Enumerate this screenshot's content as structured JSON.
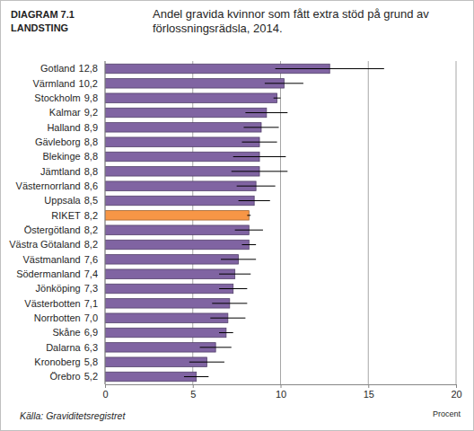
{
  "chart_data": {
    "type": "bar",
    "orientation": "horizontal",
    "title": "Andel gravida kvinnor som fått extra stöd på grund av förlossningsrädsla, 2014.",
    "annotations": [
      "DIAGRAM 7.1",
      "LANDSTING",
      "Källa: Graviditetsregistret"
    ],
    "xlabel": "Procent",
    "categories": [
      "Gotland",
      "Värmland",
      "Stockholm",
      "Kalmar",
      "Halland",
      "Gävleborg",
      "Blekinge",
      "Jämtland",
      "Västernorrland",
      "Uppsala",
      "RIKET",
      "Östergötland",
      "Västra Götaland",
      "Västmanland",
      "Södermanland",
      "Jönköping",
      "Västerbotten",
      "Norrbotten",
      "Skåne",
      "Dalarna",
      "Kronoberg",
      "Örebro"
    ],
    "values": [
      12.8,
      10.2,
      9.8,
      9.2,
      8.9,
      8.8,
      8.8,
      8.8,
      8.6,
      8.5,
      8.2,
      8.2,
      8.2,
      7.6,
      7.4,
      7.3,
      7.1,
      7.0,
      6.9,
      6.3,
      5.8,
      5.2
    ],
    "value_labels": [
      "12,8",
      "10,2",
      "9,8",
      "9,2",
      "8,9",
      "8,8",
      "8,8",
      "8,8",
      "8,6",
      "8,5",
      "8,2",
      "8,2",
      "8,2",
      "7,6",
      "7,4",
      "7,3",
      "7,1",
      "7,0",
      "6,9",
      "6,3",
      "5,8",
      "5,2"
    ],
    "errors": [
      3.1,
      1.1,
      0.2,
      1.2,
      1.0,
      1.0,
      1.5,
      1.6,
      1.1,
      0.9,
      0.1,
      0.8,
      0.4,
      1.0,
      0.9,
      0.8,
      1.0,
      1.0,
      0.4,
      0.9,
      1.0,
      0.7
    ],
    "data_labels": true,
    "colors": [
      "#8064a2",
      "#8064a2",
      "#8064a2",
      "#8064a2",
      "#8064a2",
      "#8064a2",
      "#8064a2",
      "#8064a2",
      "#8064a2",
      "#8064a2",
      "#f79646",
      "#8064a2",
      "#8064a2",
      "#8064a2",
      "#8064a2",
      "#8064a2",
      "#8064a2",
      "#8064a2",
      "#8064a2",
      "#8064a2",
      "#8064a2",
      "#8064a2"
    ],
    "xlim": [
      0,
      20
    ],
    "xticks": [
      0,
      5,
      10,
      15,
      20
    ],
    "grid": true
  }
}
